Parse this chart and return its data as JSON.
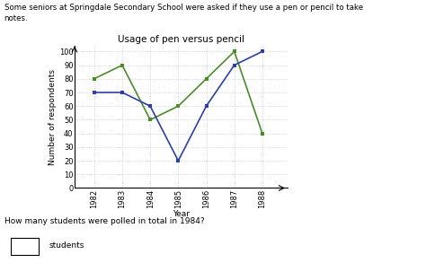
{
  "title": "Usage of pen versus pencil",
  "xlabel": "Year",
  "ylabel": "Number of respondents",
  "years": [
    1982,
    1983,
    1984,
    1985,
    1986,
    1987,
    1988
  ],
  "pen_values": [
    80,
    90,
    50,
    60,
    80,
    100,
    40
  ],
  "pencil_values": [
    70,
    70,
    60,
    20,
    60,
    90,
    100
  ],
  "pen_color": "#4a8c2a",
  "pencil_color": "#2b3fa8",
  "ylim": [
    0,
    100
  ],
  "yticks": [
    0,
    10,
    20,
    30,
    40,
    50,
    60,
    70,
    80,
    90,
    100
  ],
  "bg_color": "#ffffff",
  "grid_color": "#c8c8c8",
  "title_fontsize": 7.5,
  "axis_label_fontsize": 6.5,
  "tick_fontsize": 6,
  "legend_fontsize": 6.5,
  "intro_line1": "Some seniors at Springdale Secondary School were asked if they use a pen or pencil to take",
  "intro_line2": "notes.",
  "text_question": "How many students were polled in total in 1984?",
  "text_answer_label": "students"
}
